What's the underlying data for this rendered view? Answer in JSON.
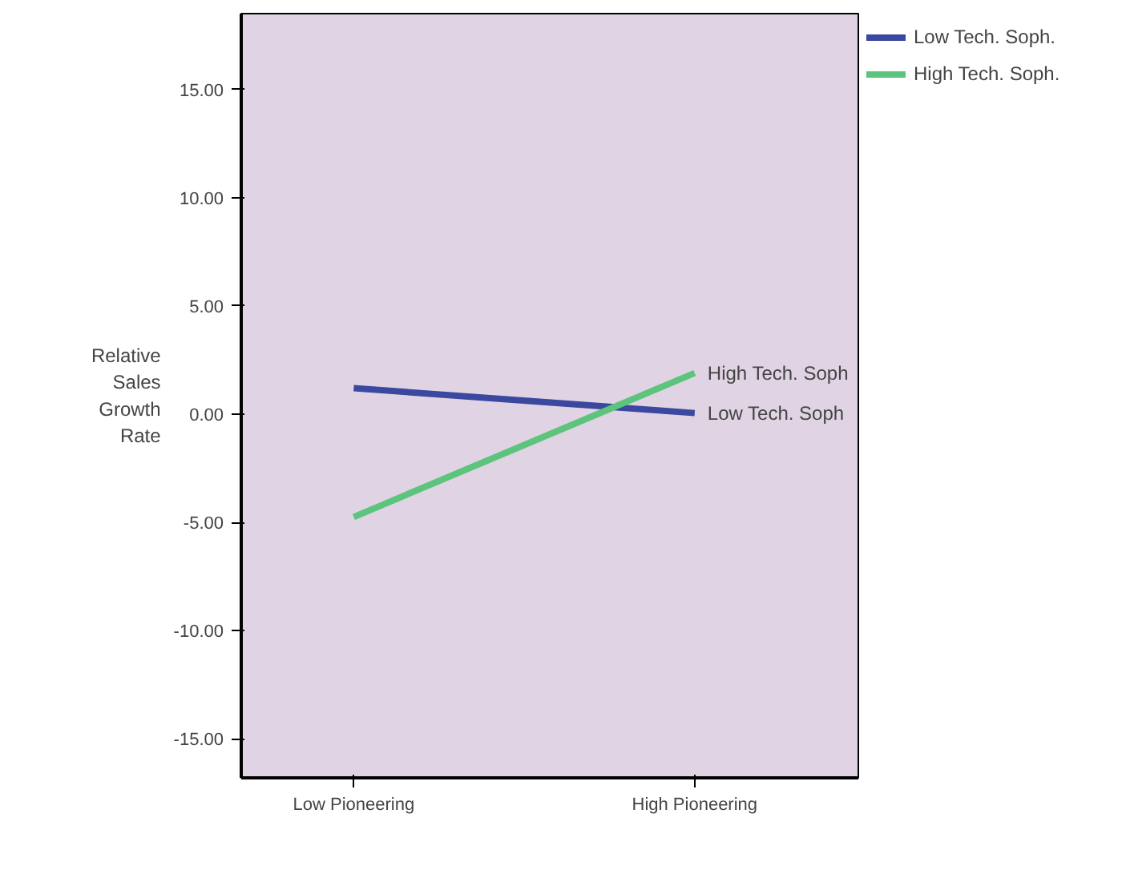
{
  "chart_data": {
    "type": "line",
    "ylabel": "Relative\nSales\nGrowth\nRate",
    "categories": [
      "Low Pioneering",
      "High Pioneering"
    ],
    "series": [
      {
        "name": "Low Tech. Soph.",
        "color": "#3a48a0",
        "values": [
          1.2,
          0.05
        ]
      },
      {
        "name": "High Tech. Soph.",
        "color": "#5cc47c",
        "values": [
          -4.75,
          1.9
        ]
      }
    ],
    "ylim": [
      -16.8,
      18.5
    ],
    "yticks": [
      {
        "value": 15,
        "label": "15.00"
      },
      {
        "value": 10,
        "label": "10.00"
      },
      {
        "value": 5,
        "label": "5.00"
      },
      {
        "value": 0,
        "label": "0.00"
      },
      {
        "value": -5,
        "label": "-5.00"
      },
      {
        "value": -10,
        "label": "-10.00"
      },
      {
        "value": -15,
        "label": "-15.00"
      }
    ],
    "annotations": [
      {
        "text": "High Tech. Soph",
        "x": "High Pioneering",
        "y": 1.9
      },
      {
        "text": "Low Tech. Soph",
        "x": "High Pioneering",
        "y": 0.05
      }
    ],
    "legend": "top right",
    "grid": false,
    "marker": "none",
    "line_style": "solid"
  }
}
